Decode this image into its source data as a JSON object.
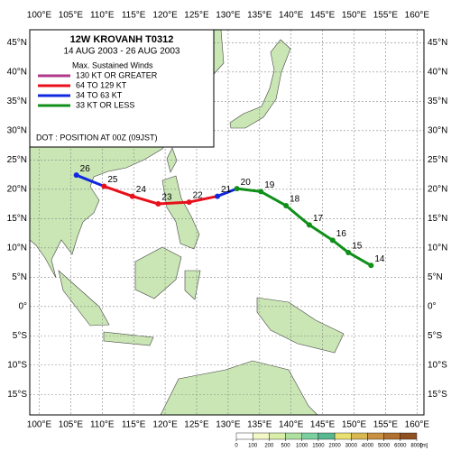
{
  "chart_data": {
    "type": "track",
    "title": "12W  KROVANH  T0312",
    "subtitle": "14 AUG 2003 - 26 AUG 2003",
    "legend_title": "Max. Sustained Winds",
    "legend": [
      {
        "label": "130 KT OR GREATER",
        "color": "#b03a8a"
      },
      {
        "label": "64 TO 129 KT",
        "color": "#e8101a"
      },
      {
        "label": "34 TO 63 KT",
        "color": "#1028e0"
      },
      {
        "label": "33 KT OR LESS",
        "color": "#10901a"
      }
    ],
    "legend_note": "DOT : POSITION AT 00Z (09JST)",
    "xlim": [
      98.5,
      161.1
    ],
    "ylim": [
      -18.5,
      47.2
    ],
    "xticks": [
      {
        "value": 100,
        "label": "100°E"
      },
      {
        "value": 105,
        "label": "105°E"
      },
      {
        "value": 110,
        "label": "110°E"
      },
      {
        "value": 115,
        "label": "115°E"
      },
      {
        "value": 120,
        "label": "120°E"
      },
      {
        "value": 125,
        "label": "125°E"
      },
      {
        "value": 130,
        "label": "130°E"
      },
      {
        "value": 135,
        "label": "135°E"
      },
      {
        "value": 140,
        "label": "140°E"
      },
      {
        "value": 145,
        "label": "145°E"
      },
      {
        "value": 150,
        "label": "150°E"
      },
      {
        "value": 155,
        "label": "155°E"
      },
      {
        "value": 160,
        "label": "160°E"
      }
    ],
    "yticks": [
      {
        "value": 45,
        "label": "45°N"
      },
      {
        "value": 40,
        "label": "40°N"
      },
      {
        "value": 35,
        "label": "35°N"
      },
      {
        "value": 30,
        "label": "30°N"
      },
      {
        "value": 25,
        "label": "25°N"
      },
      {
        "value": 20,
        "label": "20°N"
      },
      {
        "value": 15,
        "label": "15°N"
      },
      {
        "value": 10,
        "label": "10°N"
      },
      {
        "value": 5,
        "label": "5°N"
      },
      {
        "value": 0,
        "label": "0°"
      },
      {
        "value": -5,
        "label": "5°S"
      },
      {
        "value": -10,
        "label": "10°S"
      },
      {
        "value": -15,
        "label": "15°S"
      }
    ],
    "grid": true,
    "track": [
      {
        "day": 14,
        "lon": 152.7,
        "lat": 7.0,
        "color": "#10901a"
      },
      {
        "day": 15,
        "lon": 149.1,
        "lat": 9.2,
        "color": "#10901a"
      },
      {
        "day": 16,
        "lon": 146.6,
        "lat": 11.3,
        "color": "#10901a"
      },
      {
        "day": 17,
        "lon": 142.9,
        "lat": 13.9,
        "color": "#10901a"
      },
      {
        "day": 18,
        "lon": 139.2,
        "lat": 17.2,
        "color": "#10901a"
      },
      {
        "day": 19,
        "lon": 135.2,
        "lat": 19.6,
        "color": "#10901a"
      },
      {
        "day": 20,
        "lon": 131.4,
        "lat": 20.1,
        "color": "#10901a"
      },
      {
        "day": 21,
        "lon": 128.3,
        "lat": 18.8,
        "color": "#1028e0"
      },
      {
        "day": 22,
        "lon": 123.8,
        "lat": 17.8,
        "color": "#e8101a"
      },
      {
        "day": 23,
        "lon": 118.9,
        "lat": 17.5,
        "color": "#e8101a"
      },
      {
        "day": 24,
        "lon": 114.8,
        "lat": 18.8,
        "color": "#e8101a"
      },
      {
        "day": 25,
        "lon": 110.3,
        "lat": 20.5,
        "color": "#e8101a"
      },
      {
        "day": 26,
        "lon": 105.9,
        "lat": 22.4,
        "color": "#1028e0"
      }
    ],
    "colorbar": {
      "ticks": [
        0,
        100,
        200,
        500,
        1000,
        1500,
        2000,
        3000,
        4000,
        5000,
        6000,
        8000
      ],
      "colors": [
        "#ffffff",
        "#f4f7c8",
        "#d9efa8",
        "#aee0a0",
        "#7ccfa0",
        "#58b890",
        "#e8e070",
        "#d8b850",
        "#c89040",
        "#b07030",
        "#905020"
      ],
      "unit": "[m]"
    }
  }
}
